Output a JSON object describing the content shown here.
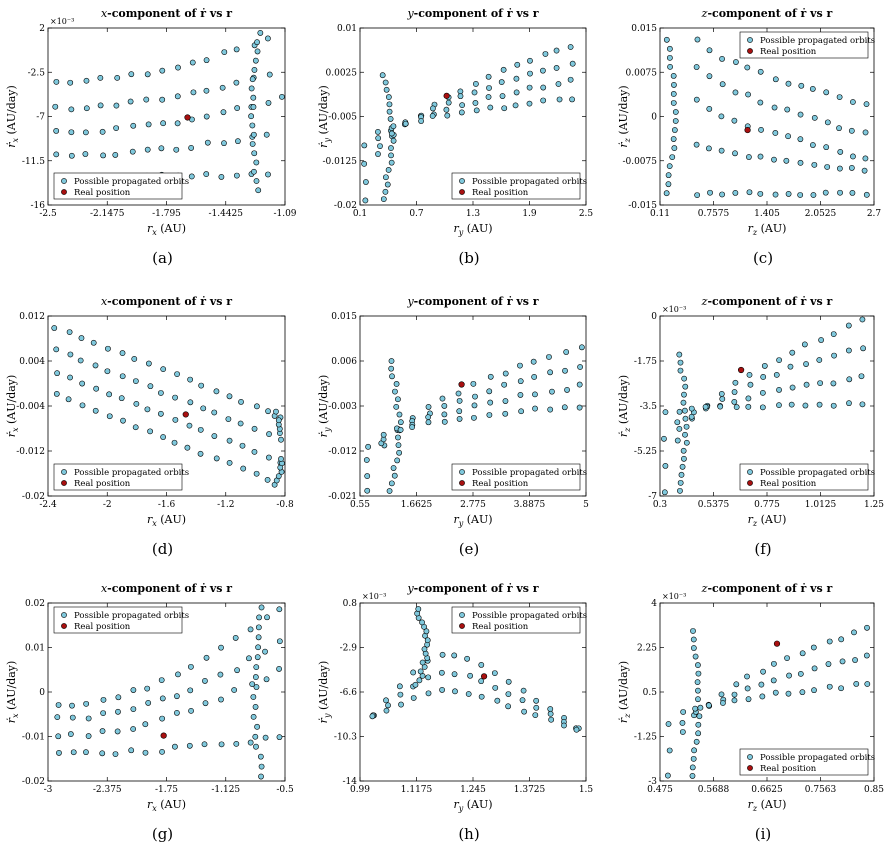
{
  "figure": {
    "marker_color": "#7fc8dc",
    "marker_edge": "#000000",
    "real_color": "#a81010",
    "legend_labels": [
      "Possible propagated orbits",
      "Real position"
    ]
  },
  "chart_data": [
    {
      "panel": "(a)",
      "type": "scatter",
      "title_component": "x",
      "title_rest": "-component of ṙ vs r",
      "xlabel_sym": "r",
      "xlabel_sub": "x",
      "xlabel_unit": " (AU)",
      "ylabel_sym": "ṙ",
      "ylabel_sub": "x",
      "ylabel_unit": " (AU/day)",
      "exponent": "×10⁻³",
      "xlim": [
        -2.5,
        -1.09
      ],
      "ylim": [
        -16,
        2
      ],
      "xticks": [
        "-2.5",
        "-2.1475",
        "-1.795",
        "-1.4425",
        "-1.09"
      ],
      "yticks": [
        "2",
        "-2.5",
        "-7",
        "-11.5",
        "-16"
      ],
      "legend_pos": "bottom-left",
      "series": [
        {
          "name": "Possible propagated orbits",
          "shape": "fan",
          "x_start": -2.45,
          "x_end": -1.1,
          "y_start": [
            -3.5,
            -6.2,
            -8.6,
            -11.0,
            -13.2
          ],
          "y_end": [
            1.5,
            -2.2,
            -5.2,
            -8.5,
            -12.8
          ],
          "points_per_arc": 16,
          "branch_x": -1.25,
          "branch_y_top": 1.5,
          "branch_y_bottom": -14.5
        },
        {
          "name": "Real position",
          "points": [
            [
              -1.67,
              -7.1
            ]
          ]
        }
      ]
    },
    {
      "panel": "(b)",
      "type": "scatter",
      "title_component": "y",
      "title_rest": "-component of ṙ vs r",
      "xlabel_sym": "r",
      "xlabel_sub": "y",
      "xlabel_unit": " (AU)",
      "ylabel_sym": "ṙ",
      "ylabel_sub": "y",
      "ylabel_unit": " (AU/day)",
      "exponent": "",
      "xlim": [
        0.1,
        2.5
      ],
      "ylim": [
        -0.02,
        0.01
      ],
      "xticks": [
        "0.1",
        "0.7",
        "1.3",
        "1.9",
        "2.5"
      ],
      "yticks": [
        "0.01",
        "0.0025",
        "-0.005",
        "-0.0125",
        "-0.02"
      ],
      "legend_pos": "bottom-right",
      "series": [
        {
          "name": "Possible propagated orbits",
          "shape": "rise",
          "x_start": 0.15,
          "x_end": 2.35,
          "y_start": [
            -0.019,
            -0.016,
            -0.013,
            -0.01
          ],
          "y_end": [
            0.007,
            0.004,
            0.001,
            -0.002
          ],
          "points_per_arc": 16,
          "branch_x": 0.35,
          "branch_y_top": 0.002,
          "branch_y_bottom": -0.019
        },
        {
          "name": "Real position",
          "points": [
            [
              1.02,
              -0.0015
            ]
          ]
        }
      ]
    },
    {
      "panel": "(c)",
      "type": "scatter",
      "title_component": "z",
      "title_rest": "-component of ṙ vs r",
      "xlabel_sym": "r",
      "xlabel_sub": "z",
      "xlabel_unit": " (AU)",
      "ylabel_sym": "ṙ",
      "ylabel_sub": "z",
      "ylabel_unit": " (AU/day)",
      "exponent": "",
      "xlim": [
        0.11,
        2.7
      ],
      "ylim": [
        -0.015,
        0.015
      ],
      "xticks": [
        "0.11",
        "0.7575",
        "1.405",
        "2.0525",
        "2.7"
      ],
      "yticks": [
        "0.015",
        "0.0075",
        "0",
        "-0.0075",
        "-0.015"
      ],
      "legend_pos": "top-right",
      "series": [
        {
          "name": "Possible propagated orbits",
          "shape": "fall",
          "x_start": 0.55,
          "x_end": 2.6,
          "y_start": [
            0.013,
            0.0085,
            0.003,
            -0.005,
            -0.013
          ],
          "y_end": [
            0.002,
            -0.003,
            -0.007,
            -0.009,
            -0.013
          ],
          "points_per_arc": 14,
          "branch_x": 0.2,
          "branch_y_top": 0.013,
          "branch_y_bottom": -0.013
        },
        {
          "name": "Real position",
          "points": [
            [
              1.17,
              -0.0023
            ]
          ]
        }
      ]
    },
    {
      "panel": "(d)",
      "type": "scatter",
      "title_component": "x",
      "title_rest": "-component of ṙ vs r",
      "xlabel_sym": "r",
      "xlabel_sub": "x",
      "xlabel_unit": " (AU)",
      "ylabel_sym": "ṙ",
      "ylabel_sub": "x",
      "ylabel_unit": " (AU/day)",
      "exponent": "",
      "xlim": [
        -2.4,
        -0.8
      ],
      "ylim": [
        -0.02,
        0.012
      ],
      "xticks": [
        "-2.4",
        "-2",
        "-1.6",
        "-1.2",
        "-0.8"
      ],
      "yticks": [
        "0.012",
        "0.004",
        "-0.004",
        "-0.012",
        "-0.02"
      ],
      "legend_pos": "bottom-left",
      "series": [
        {
          "name": "Possible propagated orbits",
          "shape": "cloud",
          "x_start": -2.35,
          "x_end": -0.82,
          "y_start": [
            0.01,
            0.006,
            0.002,
            -0.002
          ],
          "y_end": [
            -0.006,
            -0.01,
            -0.014,
            -0.018
          ],
          "points_per_arc": 18,
          "branch_x": -0.87,
          "branch_y_top": -0.005,
          "branch_y_bottom": -0.018
        },
        {
          "name": "Real position",
          "points": [
            [
              -1.47,
              -0.0055
            ]
          ]
        }
      ]
    },
    {
      "panel": "(e)",
      "type": "scatter",
      "title_component": "y",
      "title_rest": "-component of ṙ vs r",
      "xlabel_sym": "r",
      "xlabel_sub": "y",
      "xlabel_unit": " (AU)",
      "ylabel_sym": "ṙ",
      "ylabel_sub": "y",
      "ylabel_unit": " (AU/day)",
      "exponent": "",
      "xlim": [
        0.55,
        5
      ],
      "ylim": [
        -0.021,
        0.015
      ],
      "xticks": [
        "0.55",
        "1.6625",
        "2.775",
        "3.8875",
        "5"
      ],
      "yticks": [
        "0.015",
        "0.006",
        "-0.003",
        "-0.012",
        "-0.021"
      ],
      "legend_pos": "bottom-right",
      "series": [
        {
          "name": "Possible propagated orbits",
          "shape": "rise",
          "x_start": 0.7,
          "x_end": 4.9,
          "y_start": [
            -0.02,
            -0.017,
            -0.014,
            -0.011
          ],
          "y_end": [
            0.009,
            0.005,
            0.001,
            -0.003
          ],
          "points_per_arc": 15,
          "branch_x": 1.15,
          "branch_y_top": 0.006,
          "branch_y_bottom": -0.02
        },
        {
          "name": "Real position",
          "points": [
            [
              2.55,
              0.0013
            ]
          ]
        }
      ]
    },
    {
      "panel": "(f)",
      "type": "scatter",
      "title_component": "z",
      "title_rest": "-component of ṙ vs r",
      "xlabel_sym": "r",
      "xlabel_sub": "z",
      "xlabel_unit": " (AU)",
      "ylabel_sym": "ṙ",
      "ylabel_sub": "z",
      "ylabel_unit": " (AU/day)",
      "exponent": "×10⁻³",
      "xlim": [
        0.3,
        1.25
      ],
      "ylim": [
        -7,
        0
      ],
      "xticks": [
        "0.3",
        "0.5375",
        "0.775",
        "1.0125",
        "1.25"
      ],
      "yticks": [
        "0",
        "-1.75",
        "-3.5",
        "-5.25",
        "-7"
      ],
      "legend_pos": "bottom-right",
      "series": [
        {
          "name": "Possible propagated orbits",
          "shape": "rise",
          "x_start": 0.32,
          "x_end": 1.2,
          "y_start": [
            -6.8,
            -5.8,
            -4.8,
            -3.8
          ],
          "y_end": [
            -0.2,
            -1.2,
            -2.4,
            -3.4
          ],
          "points_per_arc": 15,
          "branch_x": 0.38,
          "branch_y_top": -1.5,
          "branch_y_bottom": -6.8
        },
        {
          "name": "Real position",
          "points": [
            [
              0.66,
              -2.1
            ]
          ]
        }
      ]
    },
    {
      "panel": "(g)",
      "type": "scatter",
      "title_component": "x",
      "title_rest": "-component of ṙ vs r",
      "xlabel_sym": "r",
      "xlabel_sub": "x",
      "xlabel_unit": " (AU)",
      "ylabel_sym": "ṙ",
      "ylabel_sub": "x",
      "ylabel_unit": " (AU/day)",
      "exponent": "",
      "xlim": [
        -3,
        -0.5
      ],
      "ylim": [
        -0.02,
        0.02
      ],
      "xticks": [
        "-3",
        "-2.375",
        "-1.75",
        "-1.125",
        "-0.5"
      ],
      "yticks": [
        "0.02",
        "0.01",
        "0",
        "-0.01",
        "-0.02"
      ],
      "legend_pos": "top-left",
      "series": [
        {
          "name": "Possible propagated orbits",
          "shape": "fan",
          "x_start": -2.9,
          "x_end": -0.55,
          "y_start": [
            -0.003,
            -0.006,
            -0.01,
            -0.014
          ],
          "y_end": [
            0.019,
            0.011,
            0.005,
            -0.01
          ],
          "points_per_arc": 16,
          "branch_x": -0.75,
          "branch_y_top": 0.019,
          "branch_y_bottom": -0.019
        },
        {
          "name": "Real position",
          "points": [
            [
              -1.78,
              -0.0098
            ]
          ]
        }
      ]
    },
    {
      "panel": "(h)",
      "type": "scatter",
      "title_component": "y",
      "title_rest": "-component of ṙ vs r",
      "xlabel_sym": "r",
      "xlabel_sub": "y",
      "xlabel_unit": " (AU)",
      "ylabel_sym": "ṙ",
      "ylabel_sub": "y",
      "ylabel_unit": " (AU/day)",
      "exponent": "×10⁻³",
      "xlim": [
        0.99,
        1.5
      ],
      "ylim": [
        -14,
        0.8
      ],
      "xticks": [
        "0.99",
        "1.1175",
        "1.245",
        "1.3725",
        "1.5"
      ],
      "yticks": [
        "0.8",
        "-2.9",
        "-6.6",
        "-10.3",
        "-14"
      ],
      "legend_pos": "top-right",
      "series": [
        {
          "name": "Possible propagated orbits",
          "shape": "peak",
          "x_start": 0.99,
          "x_end": 1.48,
          "y_start": [
            -9.8,
            -9.5,
            -9.2
          ],
          "y_end": [
            -13.0,
            -12.2,
            -11.5
          ],
          "points_per_arc": 17,
          "branch_x": 1.12,
          "branch_y_top": 0.3,
          "branch_y_bottom": -6.0
        },
        {
          "name": "Real position",
          "points": [
            [
              1.27,
              -5.3
            ]
          ]
        }
      ]
    },
    {
      "panel": "(i)",
      "type": "scatter",
      "title_component": "z",
      "title_rest": "-component of ṙ vs r",
      "xlabel_sym": "r",
      "xlabel_sub": "z",
      "xlabel_unit": " (AU)",
      "ylabel_sym": "ṙ",
      "ylabel_sub": "z",
      "ylabel_unit": " (AU/day)",
      "exponent": "×10⁻³",
      "xlim": [
        0.475,
        0.85
      ],
      "ylim": [
        -3,
        4
      ],
      "xticks": [
        "0.475",
        "0.5688",
        "0.6625",
        "0.7563",
        "0.85"
      ],
      "yticks": [
        "4",
        "2.25",
        "0.5",
        "-1.25",
        "-3"
      ],
      "legend_pos": "bottom-right",
      "series": [
        {
          "name": "Possible propagated orbits",
          "shape": "rise",
          "x_start": 0.49,
          "x_end": 0.84,
          "y_start": [
            -2.8,
            -1.8,
            -0.8
          ],
          "y_end": [
            3.0,
            1.9,
            0.8
          ],
          "points_per_arc": 16,
          "branch_x": 0.53,
          "branch_y_top": 2.9,
          "branch_y_bottom": -2.8
        },
        {
          "name": "Real position",
          "points": [
            [
              0.68,
              2.4
            ]
          ]
        }
      ]
    }
  ]
}
